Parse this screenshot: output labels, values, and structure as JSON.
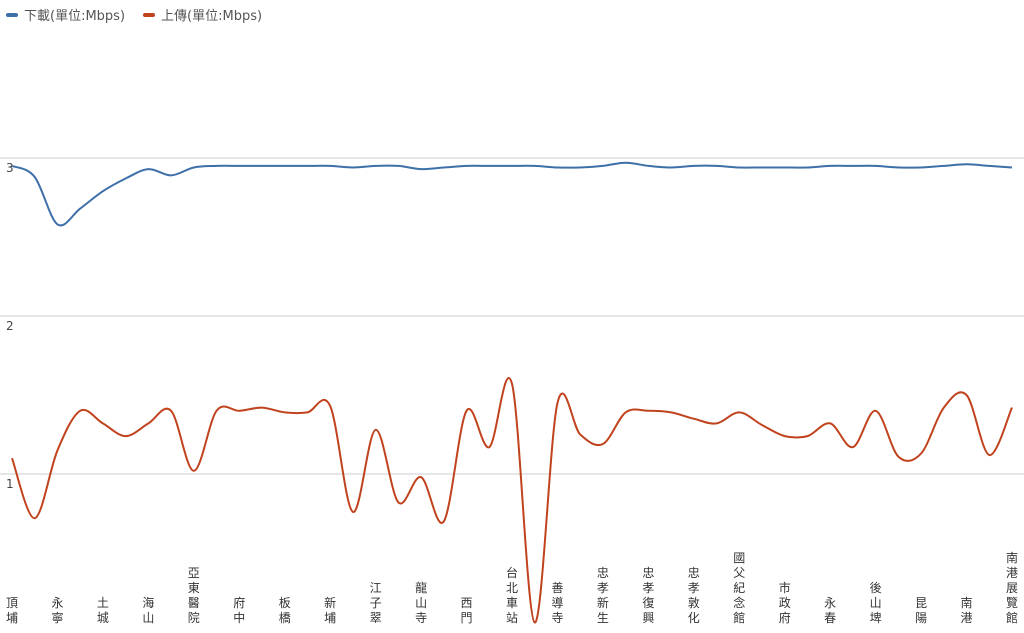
{
  "chart_data": {
    "type": "line",
    "categories": [
      "頂埔",
      "永寧",
      "土城",
      "海山",
      "亞東醫院",
      "府中",
      "板橋",
      "新埔",
      "江子翠",
      "龍山寺",
      "西門",
      "台北車站",
      "善導寺",
      "忠孝新生",
      "忠孝復興",
      "忠孝敦化",
      "國父紀念館",
      "市政府",
      "永春",
      "後山埤",
      "昆陽",
      "南港",
      "南港展覽館"
    ],
    "series": [
      {
        "name": "下載(單位:Mbps)",
        "color": "#3d6fa8",
        "x": [
          0,
          0.5,
          1,
          1.5,
          2,
          2.5,
          3,
          3.5,
          4,
          4.5,
          5,
          5.5,
          6,
          6.5,
          7,
          7.5,
          8,
          8.5,
          9,
          9.5,
          10,
          10.5,
          11,
          11.5,
          12,
          12.5,
          13,
          13.5,
          14,
          14.5,
          15,
          15.5,
          16,
          16.5,
          17,
          17.5,
          18,
          18.5,
          19,
          19.5,
          20,
          20.5,
          21,
          21.5,
          22
        ],
        "values": [
          2.95,
          2.88,
          2.58,
          2.68,
          2.79,
          2.87,
          2.93,
          2.89,
          2.94,
          2.95,
          2.95,
          2.95,
          2.95,
          2.95,
          2.95,
          2.94,
          2.95,
          2.95,
          2.93,
          2.94,
          2.95,
          2.95,
          2.95,
          2.95,
          2.94,
          2.94,
          2.95,
          2.97,
          2.95,
          2.94,
          2.95,
          2.95,
          2.94,
          2.94,
          2.94,
          2.94,
          2.95,
          2.95,
          2.95,
          2.94,
          2.94,
          2.95,
          2.96,
          2.95,
          2.94
        ]
      },
      {
        "name": "上傳(單位:Mbps)",
        "color": "#c0431e",
        "x": [
          0,
          0.5,
          1,
          1.5,
          2,
          2.5,
          3,
          3.5,
          4,
          4.5,
          5,
          5.5,
          6,
          6.5,
          7,
          7.5,
          8,
          8.5,
          9,
          9.5,
          10,
          10.5,
          11,
          11.5,
          12,
          12.5,
          13,
          13.5,
          14,
          14.5,
          15,
          15.5,
          16,
          16.5,
          17,
          17.5,
          18,
          18.5,
          19,
          19.5,
          20,
          20.5,
          21,
          21.5,
          22
        ],
        "values": [
          1.1,
          0.72,
          1.15,
          1.4,
          1.32,
          1.24,
          1.32,
          1.4,
          1.02,
          1.4,
          1.4,
          1.42,
          1.39,
          1.39,
          1.43,
          0.76,
          1.28,
          0.82,
          0.98,
          0.7,
          1.4,
          1.17,
          1.57,
          0.06,
          1.45,
          1.25,
          1.19,
          1.39,
          1.4,
          1.39,
          1.35,
          1.32,
          1.39,
          1.31,
          1.24,
          1.24,
          1.32,
          1.17,
          1.4,
          1.11,
          1.13,
          1.42,
          1.5,
          1.12,
          1.42
        ]
      }
    ],
    "yticks": [
      1,
      2,
      3
    ],
    "ylim": [
      0,
      3.3
    ],
    "grid": true,
    "legend": "top-left"
  }
}
